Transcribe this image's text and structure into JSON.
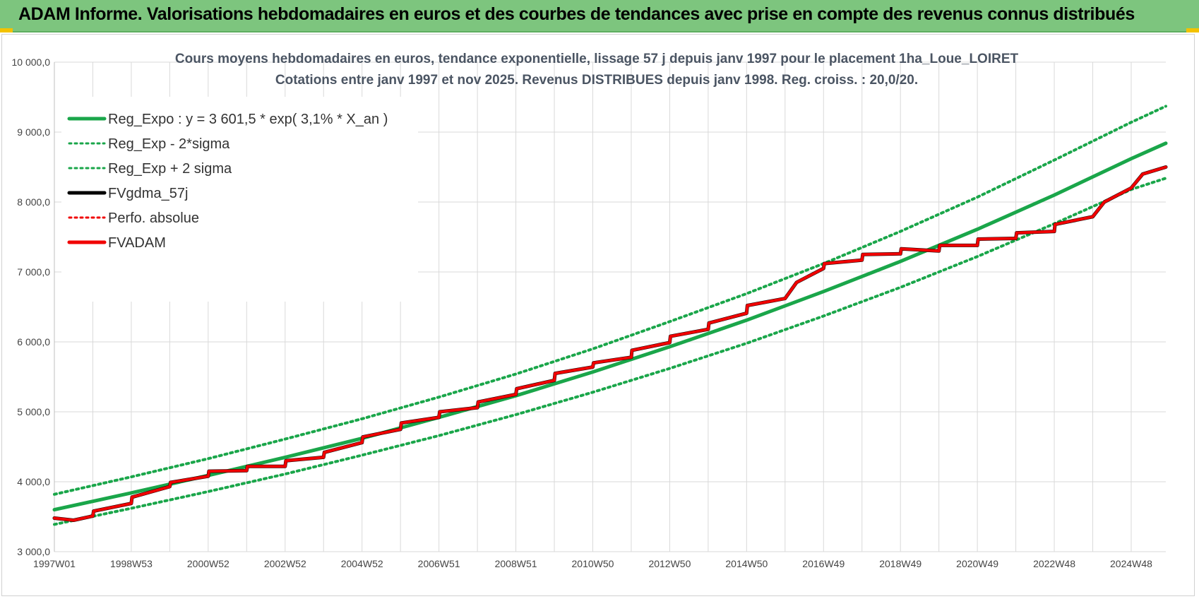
{
  "banner": {
    "title": "ADAM Informe. Valorisations hebdomadaires en euros et des courbes de tendances avec prise en compte des revenus connus distribués"
  },
  "colors": {
    "banner_bg": "#7dc57e",
    "trend_green": "#1aa64a",
    "fvadam_red": "#f00000",
    "fvgdma_black": "#000000",
    "grid": "#d9d9d9"
  },
  "chart_data": {
    "type": "line",
    "title": "Cours moyens hebdomadaires en euros, tendance exponentielle, lissage 57 j depuis janv 1997 pour le placement 1ha_Loue_LOIRET",
    "subtitle": "Cotations entre janv 1997 et nov 2025. Revenus DISTRIBUES depuis janv 1998. Reg. croiss. : 20,0/20.",
    "xlabel": "",
    "ylabel": "",
    "ylim": [
      3000,
      10000
    ],
    "y_ticks": [
      "3 000,0",
      "4 000,0",
      "5 000,0",
      "6 000,0",
      "7 000,0",
      "8 000,0",
      "9 000,0",
      "10 000,0"
    ],
    "y_tick_values": [
      3000,
      4000,
      5000,
      6000,
      7000,
      8000,
      9000,
      10000
    ],
    "xlim": [
      1997.0,
      2025.9
    ],
    "x_ticks": [
      "1997W01",
      "1998W53",
      "2000W52",
      "2002W52",
      "2004W52",
      "2006W51",
      "2008W51",
      "2010W50",
      "2012W50",
      "2014W50",
      "2016W49",
      "2018W49",
      "2020W49",
      "2022W48",
      "2024W48"
    ],
    "x_tick_positions": [
      1997.0,
      1999.0,
      2001.0,
      2003.0,
      2005.0,
      2007.0,
      2009.0,
      2011.0,
      2013.0,
      2015.0,
      2017.0,
      2019.0,
      2021.0,
      2023.0,
      2025.0
    ],
    "grid": true,
    "legend_placement": "top-left",
    "legend": [
      {
        "name": "Reg_Expo : y = 3 601,5 * exp( 3,1% *  X_an )",
        "style": "solid",
        "color": "#1aa64a"
      },
      {
        "name": "Reg_Exp - 2*sigma",
        "style": "dotted",
        "color": "#1aa64a"
      },
      {
        "name": "Reg_Exp + 2 sigma",
        "style": "dotted",
        "color": "#1aa64a"
      },
      {
        "name": "FVgdma_57j",
        "style": "solid",
        "color": "#000000"
      },
      {
        "name": "Perfo. absolue",
        "style": "dotted",
        "color": "#f00000"
      },
      {
        "name": "FVADAM",
        "style": "solid",
        "color": "#f00000"
      }
    ],
    "series": [
      {
        "name": "Reg_Expo : y = 3 601,5 * exp( 3,1% *  X_an )",
        "x": [
          1997.0,
          1999.0,
          2001.0,
          2003.0,
          2005.0,
          2007.0,
          2009.0,
          2011.0,
          2013.0,
          2015.0,
          2017.0,
          2019.0,
          2021.0,
          2023.0,
          2025.0,
          2025.9
        ],
        "values": [
          3600,
          3840,
          4090,
          4350,
          4620,
          4920,
          5230,
          5570,
          5930,
          6310,
          6720,
          7150,
          7610,
          8100,
          8620,
          8840
        ]
      },
      {
        "name": "Reg_Exp - 2*sigma",
        "x": [
          1997.0,
          1999.0,
          2001.0,
          2003.0,
          2005.0,
          2007.0,
          2009.0,
          2011.0,
          2013.0,
          2015.0,
          2017.0,
          2019.0,
          2021.0,
          2023.0,
          2025.0,
          2025.9
        ],
        "values": [
          3390,
          3620,
          3860,
          4110,
          4380,
          4660,
          4960,
          5280,
          5620,
          5980,
          6370,
          6780,
          7220,
          7690,
          8180,
          8340
        ]
      },
      {
        "name": "Reg_Exp + 2 sigma",
        "x": [
          1997.0,
          1999.0,
          2001.0,
          2003.0,
          2005.0,
          2007.0,
          2009.0,
          2011.0,
          2013.0,
          2015.0,
          2017.0,
          2019.0,
          2021.0,
          2023.0,
          2025.0,
          2025.9
        ],
        "values": [
          3820,
          4070,
          4330,
          4610,
          4900,
          5210,
          5540,
          5900,
          6290,
          6690,
          7120,
          7580,
          8070,
          8600,
          9140,
          9370
        ]
      },
      {
        "name": "FVgdma_57j",
        "x": [
          1997.0,
          1997.5,
          1998.0,
          1998.02,
          1999.0,
          1999.02,
          2000.0,
          2000.02,
          2001.0,
          2001.02,
          2002.0,
          2002.02,
          2003.0,
          2003.02,
          2004.0,
          2004.02,
          2005.0,
          2005.02,
          2006.0,
          2006.02,
          2007.0,
          2007.02,
          2008.0,
          2008.02,
          2009.0,
          2009.02,
          2010.0,
          2010.02,
          2011.0,
          2011.02,
          2012.0,
          2012.02,
          2013.0,
          2013.02,
          2014.0,
          2014.02,
          2015.0,
          2015.02,
          2016.0,
          2016.3,
          2017.0,
          2017.02,
          2018.0,
          2018.02,
          2019.0,
          2019.02,
          2020.0,
          2020.02,
          2021.0,
          2021.02,
          2022.0,
          2022.02,
          2023.0,
          2023.02,
          2024.0,
          2024.3,
          2025.0,
          2025.3,
          2025.9
        ],
        "values": [
          3480,
          3450,
          3510,
          3580,
          3690,
          3780,
          3930,
          3990,
          4080,
          4150,
          4160,
          4220,
          4220,
          4300,
          4350,
          4420,
          4560,
          4640,
          4750,
          4840,
          4920,
          5000,
          5060,
          5140,
          5250,
          5330,
          5450,
          5550,
          5640,
          5700,
          5780,
          5880,
          5990,
          6080,
          6180,
          6270,
          6410,
          6520,
          6620,
          6850,
          7050,
          7120,
          7170,
          7250,
          7260,
          7330,
          7300,
          7380,
          7380,
          7470,
          7480,
          7560,
          7580,
          7680,
          7790,
          8000,
          8200,
          8400,
          8500
        ]
      },
      {
        "name": "FVADAM",
        "x": [
          1997.0,
          1997.5,
          1998.0,
          1998.02,
          1999.0,
          1999.02,
          2000.0,
          2000.02,
          2001.0,
          2001.02,
          2002.0,
          2002.02,
          2003.0,
          2003.02,
          2004.0,
          2004.02,
          2005.0,
          2005.02,
          2006.0,
          2006.02,
          2007.0,
          2007.02,
          2008.0,
          2008.02,
          2009.0,
          2009.02,
          2010.0,
          2010.02,
          2011.0,
          2011.02,
          2012.0,
          2012.02,
          2013.0,
          2013.02,
          2014.0,
          2014.02,
          2015.0,
          2015.02,
          2016.0,
          2016.3,
          2017.0,
          2017.02,
          2018.0,
          2018.02,
          2019.0,
          2019.02,
          2020.0,
          2020.02,
          2021.0,
          2021.02,
          2022.0,
          2022.02,
          2023.0,
          2023.02,
          2024.0,
          2024.3,
          2025.0,
          2025.3,
          2025.9
        ],
        "values": [
          3480,
          3450,
          3510,
          3580,
          3690,
          3780,
          3930,
          3990,
          4080,
          4150,
          4160,
          4220,
          4220,
          4300,
          4350,
          4420,
          4560,
          4640,
          4750,
          4840,
          4920,
          5000,
          5060,
          5140,
          5250,
          5330,
          5450,
          5550,
          5640,
          5700,
          5780,
          5880,
          5990,
          6080,
          6180,
          6270,
          6410,
          6520,
          6620,
          6850,
          7050,
          7120,
          7170,
          7250,
          7260,
          7330,
          7300,
          7380,
          7380,
          7470,
          7480,
          7560,
          7580,
          7680,
          7790,
          8000,
          8200,
          8400,
          8500
        ]
      }
    ]
  }
}
